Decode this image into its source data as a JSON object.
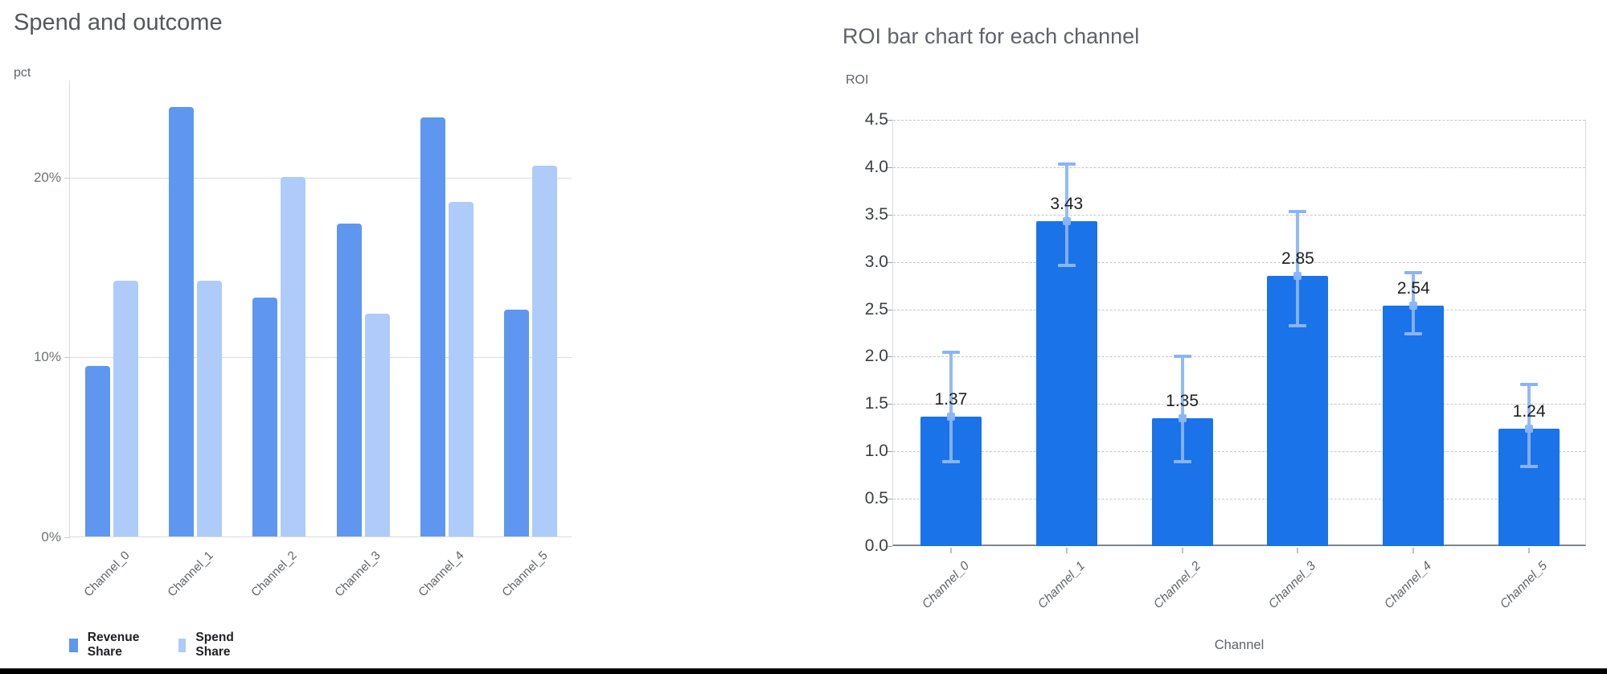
{
  "chart_data": [
    {
      "type": "bar",
      "title": "Spend and outcome",
      "ylabel": "pct",
      "xlabel": "",
      "categories": [
        "Channel_0",
        "Channel_1",
        "Channel_2",
        "Channel_3",
        "Channel_4",
        "Channel_5"
      ],
      "series": [
        {
          "name": "Revenue Share",
          "color": "#5f97f0",
          "values": [
            9.5,
            23.9,
            13.3,
            17.4,
            23.3,
            12.6
          ]
        },
        {
          "name": "Spend Share",
          "color": "#afcbf9",
          "values": [
            14.2,
            14.2,
            20.0,
            12.4,
            18.6,
            20.6
          ]
        }
      ],
      "y_ticks": [
        {
          "v": 0,
          "label": "0%"
        },
        {
          "v": 10,
          "label": "10%"
        },
        {
          "v": 20,
          "label": "20%"
        }
      ],
      "ylim": [
        0,
        25.4
      ],
      "grid": "horizontal-solid",
      "legend_position": "bottom-left"
    },
    {
      "type": "bar",
      "title": "ROI bar chart for each channel",
      "ylabel": "ROI",
      "xlabel": "Channel",
      "categories": [
        "Channel_0",
        "Channel_1",
        "Channel_2",
        "Channel_3",
        "Channel_4",
        "Channel_5"
      ],
      "values": [
        1.37,
        3.43,
        1.35,
        2.85,
        2.54,
        1.24
      ],
      "bar_labels": [
        "1.37",
        "3.43",
        "1.35",
        "2.85",
        "2.54",
        "1.24"
      ],
      "error_low": [
        0.89,
        2.96,
        0.89,
        2.33,
        2.24,
        0.84
      ],
      "error_high": [
        2.05,
        4.03,
        2.0,
        3.53,
        2.89,
        1.71
      ],
      "bar_color": "#1a73e8",
      "error_bar_color": "#8ab4f8",
      "y_ticks": [
        "0.0",
        "0.5",
        "1.0",
        "1.5",
        "2.0",
        "2.5",
        "3.0",
        "3.5",
        "4.0",
        "4.5"
      ],
      "ylim": [
        0,
        4.5
      ],
      "grid": "horizontal-dashed",
      "legend_position": "none"
    }
  ]
}
